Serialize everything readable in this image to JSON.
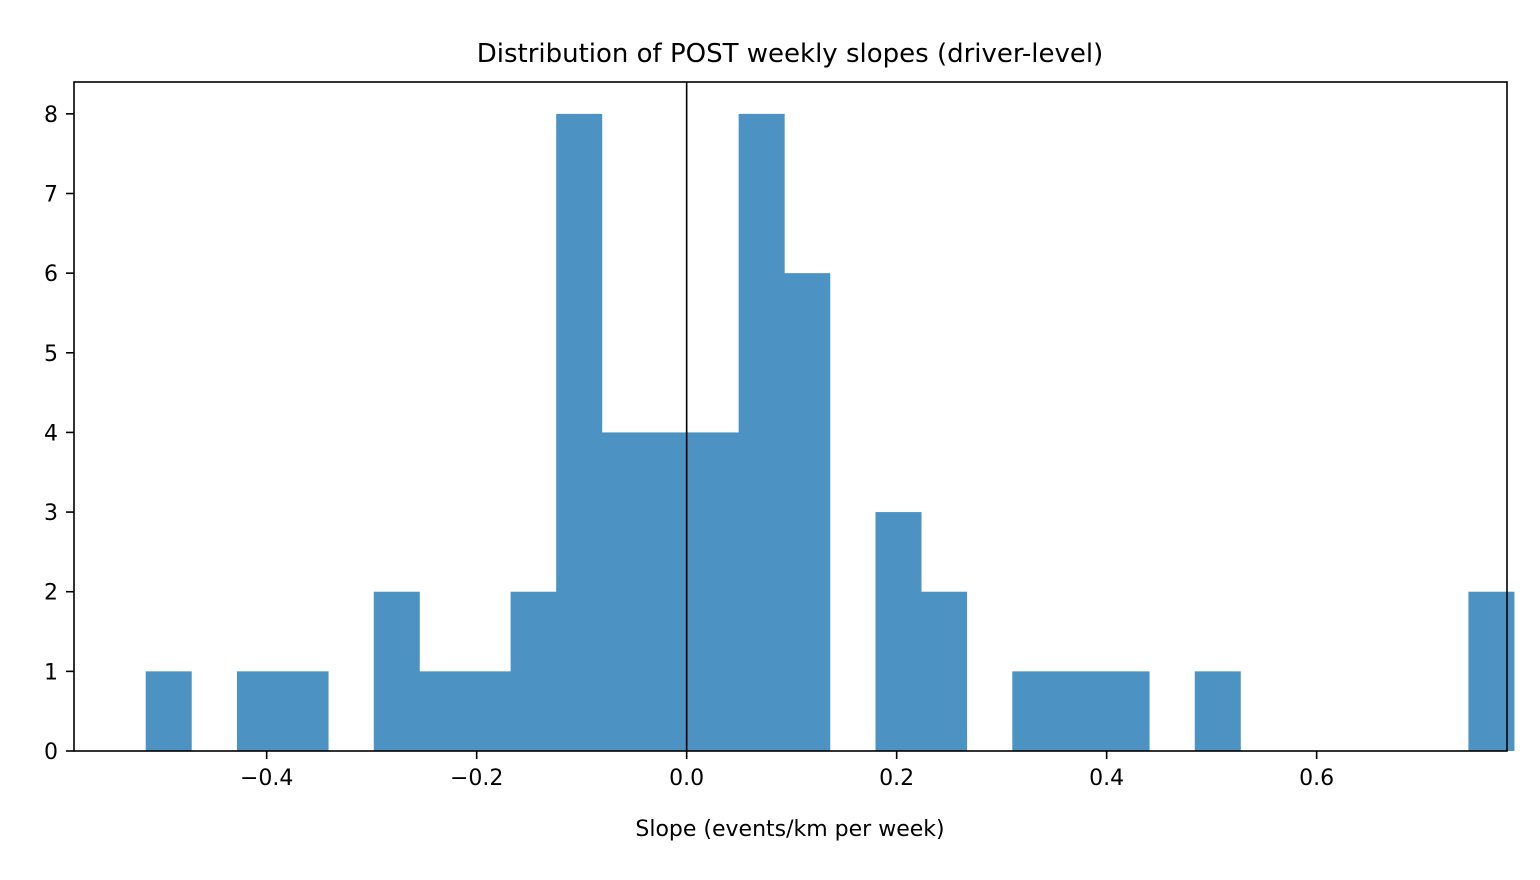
{
  "chart_data": {
    "type": "bar",
    "subtype": "histogram",
    "title": "Distribution of POST weekly slopes (driver-level)",
    "xlabel": "Slope (events/km per week)",
    "ylabel": "",
    "bin_start": -0.5152,
    "bin_width": 0.04344,
    "counts": [
      1,
      0,
      1,
      1,
      0,
      2,
      1,
      1,
      2,
      8,
      4,
      4,
      4,
      8,
      6,
      0,
      3,
      2,
      0,
      1,
      1,
      1,
      0,
      1,
      0,
      0,
      0,
      0,
      0,
      2
    ],
    "xlim": [
      -0.5835,
      0.7813
    ],
    "ylim": [
      0,
      8.4
    ],
    "x_ticks": [
      -0.4,
      -0.2,
      0.0,
      0.2,
      0.4,
      0.6
    ],
    "x_tick_labels": [
      "−0.4",
      "−0.2",
      "0.0",
      "0.2",
      "0.4",
      "0.6"
    ],
    "y_ticks": [
      0,
      1,
      2,
      3,
      4,
      5,
      6,
      7,
      8
    ],
    "y_tick_labels": [
      "0",
      "1",
      "2",
      "3",
      "4",
      "5",
      "6",
      "7",
      "8"
    ],
    "reference_line_x": 0.0,
    "bar_color": "#4c92c3",
    "reference_line_color": "#000000",
    "grid": false,
    "legend": "none"
  }
}
